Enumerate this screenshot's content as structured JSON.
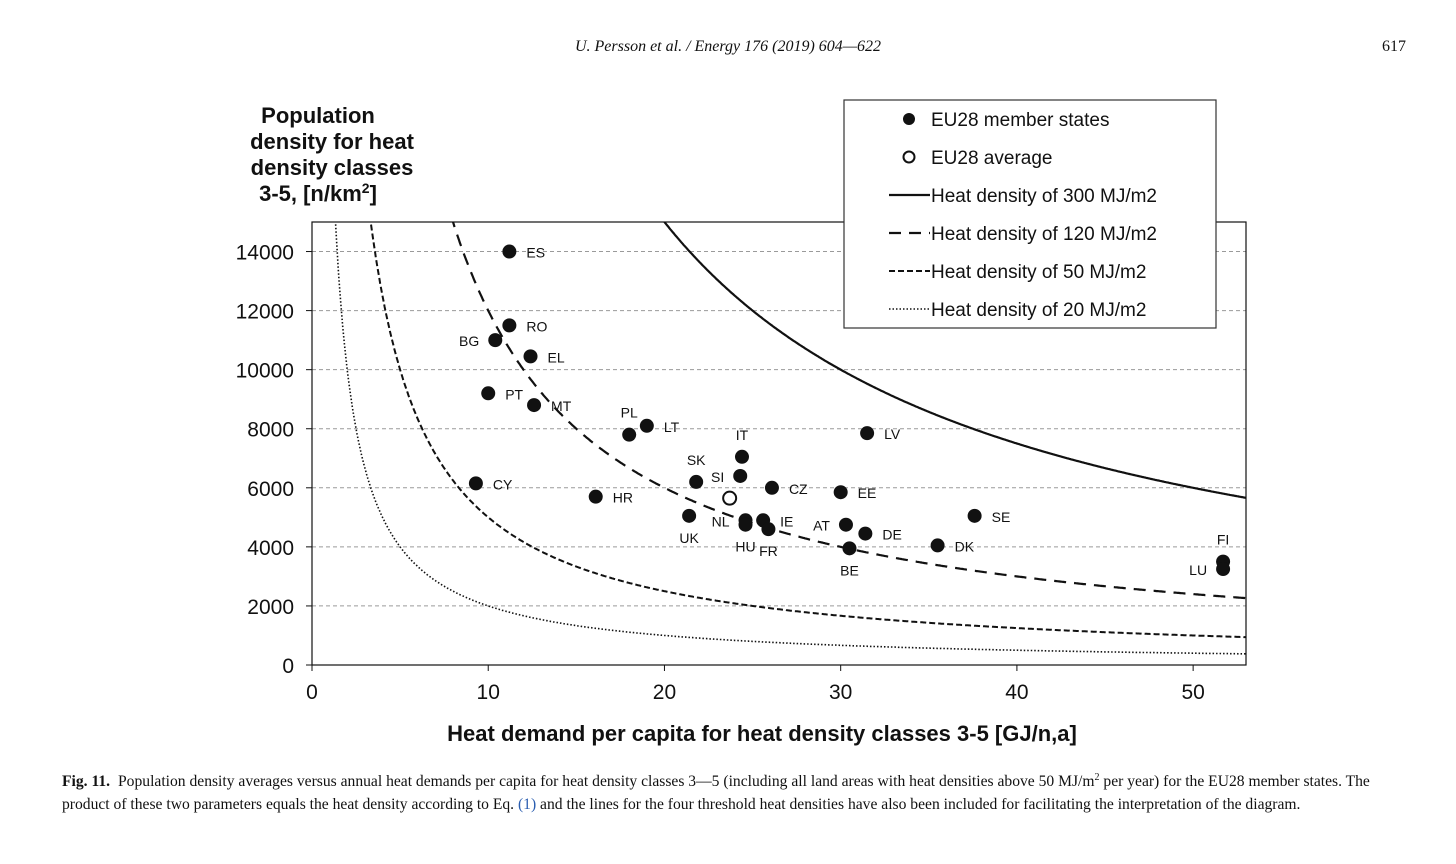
{
  "header": {
    "running_head": "U. Persson et al. / Energy 176 (2019) 604—622",
    "page_number": "617"
  },
  "chart_data": {
    "type": "scatter",
    "title": "",
    "ylabel_lines": [
      "Population",
      "density for heat",
      "density classes"
    ],
    "ylabel_last_prefix": "3-5, [n/km",
    "ylabel_last_sup": "2",
    "ylabel_last_suffix": "]",
    "xlabel": "Heat demand per capita for heat density classes 3-5 [GJ/n,a]",
    "xlim": [
      0,
      53
    ],
    "ylim": [
      0,
      15000
    ],
    "xticks": [
      0,
      10,
      20,
      30,
      40,
      50
    ],
    "yticks": [
      0,
      2000,
      4000,
      6000,
      8000,
      10000,
      12000,
      14000
    ],
    "grid": "horizontal-dashed",
    "legend_position": "top-right",
    "legend": [
      {
        "label": "EU28 member states",
        "kind": "filled-dot"
      },
      {
        "label": "EU28 average",
        "kind": "open-dot"
      },
      {
        "label": "Heat density of 300 MJ/m2",
        "kind": "solid"
      },
      {
        "label": "Heat density of 120 MJ/m2",
        "kind": "long-dash"
      },
      {
        "label": "Heat density of 50 MJ/m2",
        "kind": "short-dash"
      },
      {
        "label": "Heat density of 20 MJ/m2",
        "kind": "dotted"
      }
    ],
    "curves": [
      {
        "name": "Heat density of 300 MJ/m2",
        "heat_density": 300,
        "style": "solid"
      },
      {
        "name": "Heat density of 120 MJ/m2",
        "heat_density": 120,
        "style": "long-dash"
      },
      {
        "name": "Heat density of 50 MJ/m2",
        "heat_density": 50,
        "style": "short-dash"
      },
      {
        "name": "Heat density of 20 MJ/m2",
        "heat_density": 20,
        "style": "dotted"
      }
    ],
    "points": [
      {
        "label": "ES",
        "x": 11.2,
        "y": 14000,
        "label_pos": "right"
      },
      {
        "label": "RO",
        "x": 11.2,
        "y": 11500,
        "label_pos": "right"
      },
      {
        "label": "BG",
        "x": 10.4,
        "y": 11000,
        "label_pos": "left"
      },
      {
        "label": "EL",
        "x": 12.4,
        "y": 10450,
        "label_pos": "right"
      },
      {
        "label": "PT",
        "x": 10.0,
        "y": 9200,
        "label_pos": "right"
      },
      {
        "label": "MT",
        "x": 12.6,
        "y": 8800,
        "label_pos": "right"
      },
      {
        "label": "PL",
        "x": 18.0,
        "y": 7800,
        "label_pos": "above"
      },
      {
        "label": "LT",
        "x": 19.0,
        "y": 8100,
        "label_pos": "right"
      },
      {
        "label": "IT",
        "x": 24.4,
        "y": 7050,
        "label_pos": "above"
      },
      {
        "label": "LV",
        "x": 31.5,
        "y": 7850,
        "label_pos": "right"
      },
      {
        "label": "SK",
        "x": 21.8,
        "y": 6200,
        "label_pos": "above"
      },
      {
        "label": "SI",
        "x": 24.3,
        "y": 6400,
        "label_pos": "left"
      },
      {
        "label": "CZ",
        "x": 26.1,
        "y": 6000,
        "label_pos": "right"
      },
      {
        "label": "EE",
        "x": 30.0,
        "y": 5850,
        "label_pos": "right"
      },
      {
        "label": "CY",
        "x": 9.3,
        "y": 6150,
        "label_pos": "right"
      },
      {
        "label": "HR",
        "x": 16.1,
        "y": 5700,
        "label_pos": "right"
      },
      {
        "label": "SE",
        "x": 37.6,
        "y": 5050,
        "label_pos": "right"
      },
      {
        "label": "UK",
        "x": 21.4,
        "y": 5050,
        "label_pos": "below"
      },
      {
        "label": "NL",
        "x": 24.6,
        "y": 4900,
        "label_pos": "left"
      },
      {
        "label": "HU",
        "x": 24.6,
        "y": 4750,
        "label_pos": "below"
      },
      {
        "label": "IE",
        "x": 25.6,
        "y": 4900,
        "label_pos": "right"
      },
      {
        "label": "FR",
        "x": 25.9,
        "y": 4600,
        "label_pos": "below"
      },
      {
        "label": "AT",
        "x": 30.3,
        "y": 4750,
        "label_pos": "left"
      },
      {
        "label": "DE",
        "x": 31.4,
        "y": 4450,
        "label_pos": "right"
      },
      {
        "label": "BE",
        "x": 30.5,
        "y": 3950,
        "label_pos": "below"
      },
      {
        "label": "DK",
        "x": 35.5,
        "y": 4050,
        "label_pos": "right"
      },
      {
        "label": "FI",
        "x": 51.7,
        "y": 3500,
        "label_pos": "above"
      },
      {
        "label": "LU",
        "x": 51.7,
        "y": 3250,
        "label_pos": "left"
      }
    ],
    "average_point": {
      "label": "EU28 average",
      "x": 23.7,
      "y": 5650
    }
  },
  "caption": {
    "fig_label": "Fig. 11.",
    "text_before_sup": "Population density averages versus annual heat demands per capita for heat density classes 3—5 (including all land areas with heat densities above 50 MJ/m",
    "sup": "2",
    "text_before_link": " per year) for the EU28 member states. The product of these two parameters equals the heat density according to Eq. ",
    "link": "(1)",
    "text_after_link": " and the lines for the four threshold heat densities have also been included for facilitating the interpretation of the diagram."
  },
  "colors": {
    "ink": "#111111",
    "grid": "#9a9a9a",
    "link": "#2a5db0"
  }
}
